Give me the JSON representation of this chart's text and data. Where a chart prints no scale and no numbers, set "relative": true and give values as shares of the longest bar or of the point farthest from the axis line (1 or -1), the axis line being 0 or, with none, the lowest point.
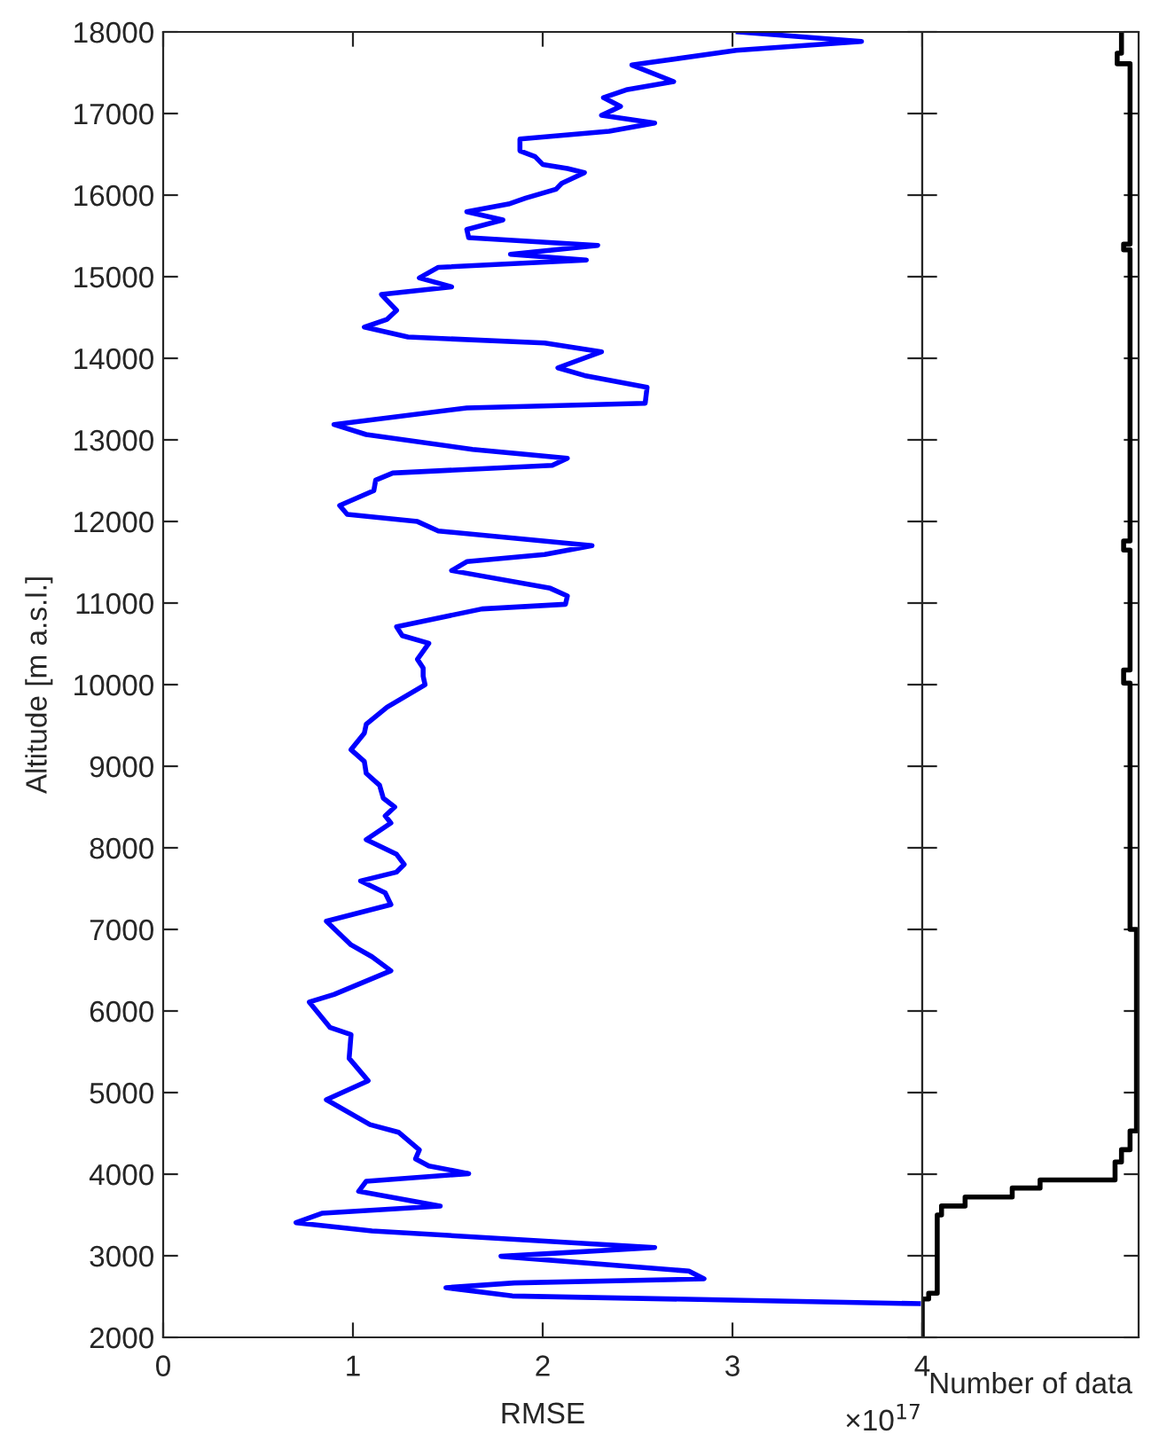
{
  "chart_data": [
    {
      "type": "line",
      "orientation": "horizontal",
      "xlabel": "RMSE",
      "ylabel": "Altitude [m a.s.l.]",
      "annotations": [
        "×10$^{17}$"
      ],
      "xlim": [
        0,
        4
      ],
      "xticks": [
        0,
        1,
        2,
        3,
        4
      ],
      "ylim": [
        2000,
        18000
      ],
      "yticks": [
        2000,
        3000,
        4000,
        5000,
        6000,
        7000,
        8000,
        9000,
        10000,
        11000,
        12000,
        13000,
        14000,
        15000,
        16000,
        17000,
        18000
      ],
      "series": [
        {
          "color": "#0000ff",
          "x": [
            18000,
            17884,
            17775,
            17594,
            17391,
            17290,
            17195,
            17086,
            16977,
            16883,
            16782,
            16688,
            16543,
            16471,
            16376,
            16326,
            16275,
            16144,
            16072,
            15963,
            15891,
            15797,
            15695,
            15579,
            15478,
            15384,
            15275,
            15203,
            15115,
            14985,
            14876,
            14782,
            14587,
            14478,
            14383,
            14260,
            14188,
            14079,
            13883,
            13789,
            13644,
            13449,
            13391,
            13188,
            13065,
            12884,
            12775,
            12688,
            12594,
            12507,
            12377,
            12195,
            12087,
            11999,
            11884,
            11703,
            11594,
            11507,
            11398,
            11181,
            11087,
            10985,
            10928,
            10710,
            10601,
            10507,
            10311,
            10203,
            10105,
            9999,
            9725,
            9514,
            9405,
            9203,
            9058,
            8913,
            8768,
            8608,
            8500,
            8391,
            8304,
            8101,
            7920,
            7797,
            7703,
            7594,
            7449,
            7304,
            7101,
            6811,
            6666,
            6493,
            6203,
            6109,
            5797,
            5710,
            5420,
            5145,
            4913,
            4608,
            4514,
            4297,
            4188,
            4101,
            4007,
            3913,
            3790,
            3609,
            3522,
            3406,
            3304,
            3101,
            2993,
            2812,
            2717,
            2667,
            2609,
            2507,
            2413
          ],
          "values": [
            3.03,
            3.68,
            3.02,
            2.47,
            2.69,
            2.44,
            2.32,
            2.41,
            2.31,
            2.59,
            2.35,
            1.88,
            1.88,
            1.96,
            2.0,
            2.13,
            2.22,
            2.1,
            2.07,
            1.91,
            1.82,
            1.6,
            1.79,
            1.6,
            1.61,
            2.29,
            1.83,
            2.23,
            1.45,
            1.35,
            1.52,
            1.15,
            1.23,
            1.18,
            1.06,
            1.29,
            2.01,
            2.31,
            2.08,
            2.22,
            2.55,
            2.54,
            1.6,
            0.9,
            1.07,
            1.63,
            2.13,
            2.05,
            1.21,
            1.12,
            1.11,
            0.93,
            0.97,
            1.34,
            1.45,
            2.26,
            2.01,
            1.6,
            1.52,
            2.04,
            2.13,
            2.12,
            1.68,
            1.23,
            1.26,
            1.4,
            1.34,
            1.37,
            1.37,
            1.38,
            1.18,
            1.07,
            1.06,
            0.99,
            1.06,
            1.07,
            1.14,
            1.16,
            1.22,
            1.17,
            1.2,
            1.07,
            1.23,
            1.27,
            1.23,
            1.04,
            1.17,
            1.2,
            0.86,
            0.99,
            1.1,
            1.2,
            0.9,
            0.77,
            0.88,
            0.99,
            0.98,
            1.08,
            0.86,
            1.09,
            1.24,
            1.35,
            1.33,
            1.4,
            1.61,
            1.07,
            1.03,
            1.46,
            0.84,
            0.7,
            1.1,
            2.59,
            1.78,
            2.77,
            2.85,
            1.85,
            1.49,
            1.84,
            3.98
          ]
        }
      ]
    },
    {
      "type": "step",
      "orientation": "horizontal",
      "relative": true,
      "xlabel": "Number of data",
      "tick_labels": false,
      "ylim": [
        2000,
        18000
      ],
      "yticks": [
        2000,
        3000,
        4000,
        5000,
        6000,
        7000,
        8000,
        9000,
        10000,
        11000,
        12000,
        13000,
        14000,
        15000,
        16000,
        17000,
        18000
      ],
      "series": [
        {
          "color": "#000000",
          "x": [
            2000,
            2470,
            2540,
            3500,
            3610,
            3720,
            3830,
            3930,
            4150,
            4300,
            4530,
            7000,
            10020,
            10180,
            11650,
            11760,
            15330,
            15400,
            17610,
            17740,
            18000
          ],
          "values": [
            0,
            0.03,
            0.07,
            0.09,
            0.2,
            0.42,
            0.55,
            0.9,
            0.93,
            0.97,
            1,
            0.97,
            0.94,
            0.97,
            0.94,
            0.97,
            0.94,
            0.97,
            0.91,
            0.93,
            0.93
          ]
        }
      ]
    }
  ]
}
